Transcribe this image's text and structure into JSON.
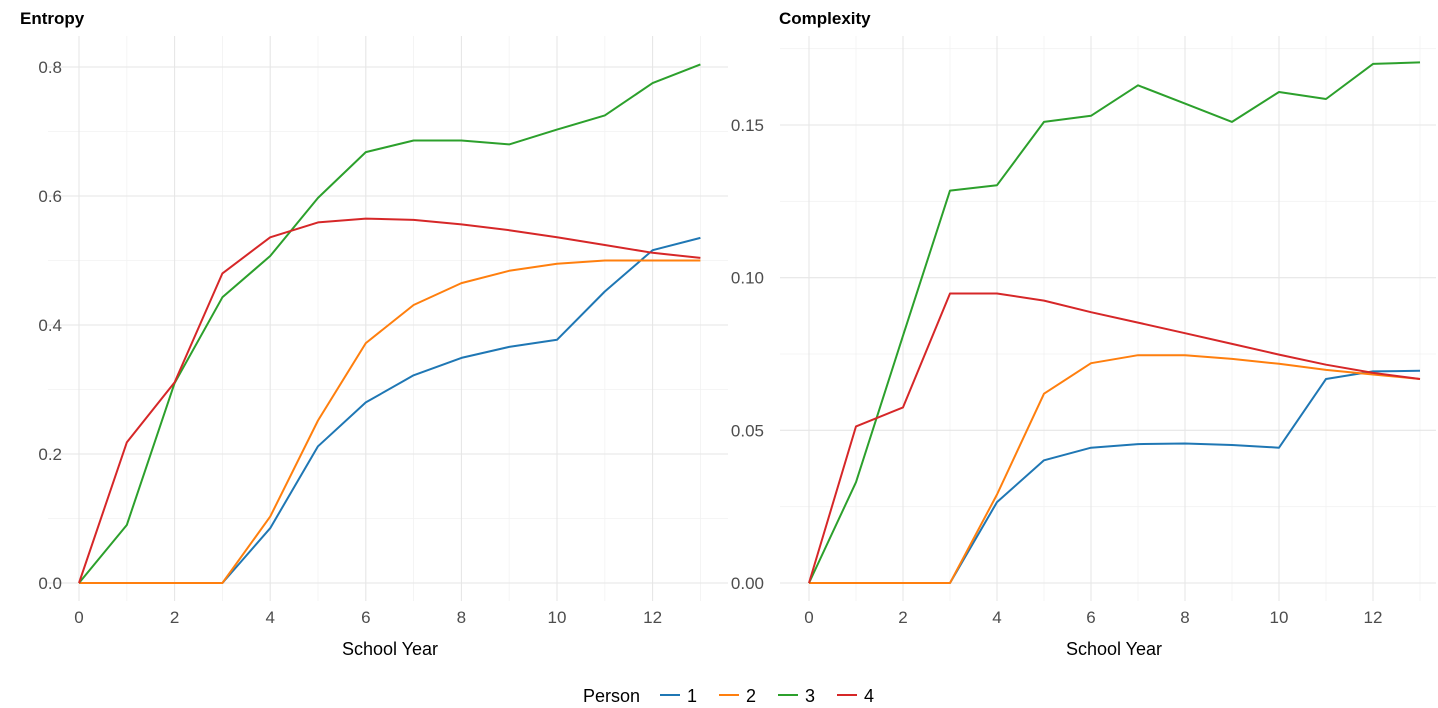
{
  "chart_data": [
    {
      "type": "line",
      "title": "Entropy",
      "xlabel": "School Year",
      "ylabel": "",
      "xlim": [
        0,
        13
      ],
      "ylim": [
        0,
        0.8
      ],
      "x_ticks": [
        0,
        2,
        4,
        6,
        8,
        10,
        12
      ],
      "x_tick_labels": [
        "0",
        "2",
        "4",
        "6",
        "8",
        "10",
        "12"
      ],
      "y_ticks": [
        0,
        0.2,
        0.4,
        0.6,
        0.8
      ],
      "y_tick_labels": [
        "0.0",
        "0.2",
        "0.4",
        "0.6",
        "0.8"
      ],
      "grid": true,
      "x": [
        0,
        1,
        2,
        3,
        4,
        5,
        6,
        7,
        8,
        9,
        10,
        11,
        12,
        13
      ],
      "series": [
        {
          "name": "1",
          "color": "#1f77b4",
          "values": [
            0,
            0,
            0,
            0,
            0.085,
            0.212,
            0.28,
            0.322,
            0.349,
            0.366,
            0.377,
            0.452,
            0.516,
            0.535
          ]
        },
        {
          "name": "2",
          "color": "#ff7f0e",
          "values": [
            0,
            0,
            0,
            0,
            0.103,
            0.252,
            0.372,
            0.431,
            0.465,
            0.484,
            0.495,
            0.5,
            0.5,
            0.5
          ]
        },
        {
          "name": "3",
          "color": "#2ca02c",
          "values": [
            0,
            0.09,
            0.31,
            0.443,
            0.507,
            0.597,
            0.668,
            0.686,
            0.686,
            0.68,
            0.703,
            0.725,
            0.775,
            0.804
          ]
        },
        {
          "name": "4",
          "color": "#d62728",
          "values": [
            0,
            0.218,
            0.311,
            0.48,
            0.536,
            0.559,
            0.565,
            0.563,
            0.556,
            0.547,
            0.536,
            0.524,
            0.512,
            0.504
          ]
        }
      ]
    },
    {
      "type": "line",
      "title": "Complexity",
      "xlabel": "School Year",
      "ylabel": "",
      "xlim": [
        0,
        13
      ],
      "ylim": [
        0,
        0.17
      ],
      "x_ticks": [
        0,
        2,
        4,
        6,
        8,
        10,
        12
      ],
      "x_tick_labels": [
        "0",
        "2",
        "4",
        "6",
        "8",
        "10",
        "12"
      ],
      "y_ticks": [
        0,
        0.05,
        0.1,
        0.15
      ],
      "y_tick_labels": [
        "0.00",
        "0.05",
        "0.10",
        "0.15"
      ],
      "grid": true,
      "x": [
        0,
        1,
        2,
        3,
        4,
        5,
        6,
        7,
        8,
        9,
        10,
        11,
        12,
        13
      ],
      "series": [
        {
          "name": "1",
          "color": "#1f77b4",
          "values": [
            0,
            0,
            0,
            0,
            0.0265,
            0.0402,
            0.0443,
            0.0455,
            0.0457,
            0.0452,
            0.0443,
            0.0668,
            0.0693,
            0.0695
          ]
        },
        {
          "name": "2",
          "color": "#ff7f0e",
          "values": [
            0,
            0,
            0,
            0,
            0.029,
            0.062,
            0.072,
            0.0746,
            0.0746,
            0.0734,
            0.0718,
            0.0698,
            0.0683,
            0.0668
          ]
        },
        {
          "name": "3",
          "color": "#2ca02c",
          "values": [
            0,
            0.033,
            0.081,
            0.1285,
            0.1303,
            0.151,
            0.153,
            0.163,
            0.157,
            0.151,
            0.1608,
            0.1585,
            0.17,
            0.1705
          ]
        },
        {
          "name": "4",
          "color": "#d62728",
          "values": [
            0,
            0.0513,
            0.0575,
            0.0948,
            0.0948,
            0.0925,
            0.0887,
            0.0853,
            0.0818,
            0.0783,
            0.0748,
            0.0715,
            0.0688,
            0.0668
          ]
        }
      ]
    }
  ],
  "legend": {
    "title": "Person",
    "position": "bottom",
    "entries": [
      {
        "label": "1",
        "color": "#1f77b4"
      },
      {
        "label": "2",
        "color": "#ff7f0e"
      },
      {
        "label": "3",
        "color": "#2ca02c"
      },
      {
        "label": "4",
        "color": "#d62728"
      }
    ]
  }
}
